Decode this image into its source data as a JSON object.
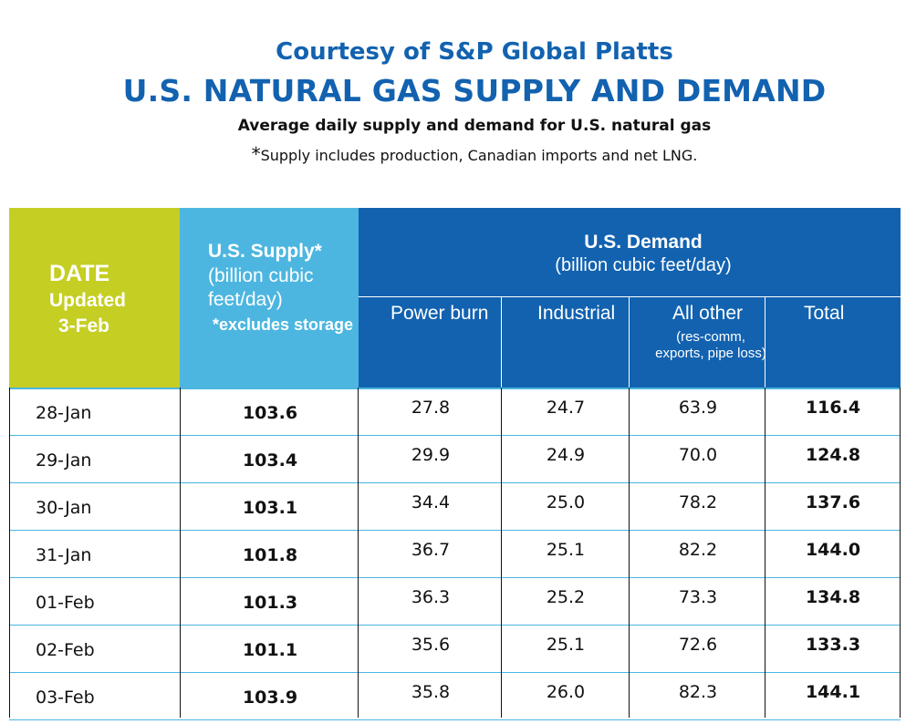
{
  "header": {
    "credit": "Courtesy of S&P Global Platts",
    "title": "U.S. NATURAL GAS SUPPLY AND DEMAND",
    "subtitle": "Average daily supply and demand for U.S. natural gas",
    "note_star": "*",
    "note_text": "Supply includes production, Canadian imports and net LNG."
  },
  "columns": {
    "date_l1": "DATE",
    "date_l2": "Updated",
    "date_l3": "3-Feb",
    "supply_l1": "U.S. Supply*",
    "supply_l2": "(billion cubic feet/day)",
    "supply_l3": "*excludes storage",
    "demand_l1": "U.S. Demand",
    "demand_l2": "(billion cubic feet/day)",
    "power_burn": "Power burn",
    "industrial": "Industrial",
    "all_other": "All other",
    "all_other_note": "(res-comm, exports, pipe loss)",
    "total": "Total"
  },
  "colors": {
    "date_header": "#c5ce22",
    "supply_header": "#4cb6e0",
    "demand_header": "#1262b0",
    "title_text": "#1262b0"
  },
  "chart_data": {
    "type": "table",
    "title": "U.S. NATURAL GAS SUPPLY AND DEMAND",
    "columns": [
      "DATE",
      "U.S. Supply*",
      "Power burn",
      "Industrial",
      "All other",
      "Total"
    ],
    "rows": [
      [
        "28-Jan",
        "103.6",
        "27.8",
        "24.7",
        "63.9",
        "116.4"
      ],
      [
        "29-Jan",
        "103.4",
        "29.9",
        "24.9",
        "70.0",
        "124.8"
      ],
      [
        "30-Jan",
        "103.1",
        "34.4",
        "25.0",
        "78.2",
        "137.6"
      ],
      [
        "31-Jan",
        "101.8",
        "36.7",
        "25.1",
        "82.2",
        "144.0"
      ],
      [
        "01-Feb",
        "101.3",
        "36.3",
        "25.2",
        "73.3",
        "134.8"
      ],
      [
        "02-Feb",
        "101.1",
        "35.6",
        "25.1",
        "72.6",
        "133.3"
      ],
      [
        "03-Feb",
        "103.9",
        "35.8",
        "26.0",
        "82.3",
        "144.1"
      ]
    ]
  }
}
